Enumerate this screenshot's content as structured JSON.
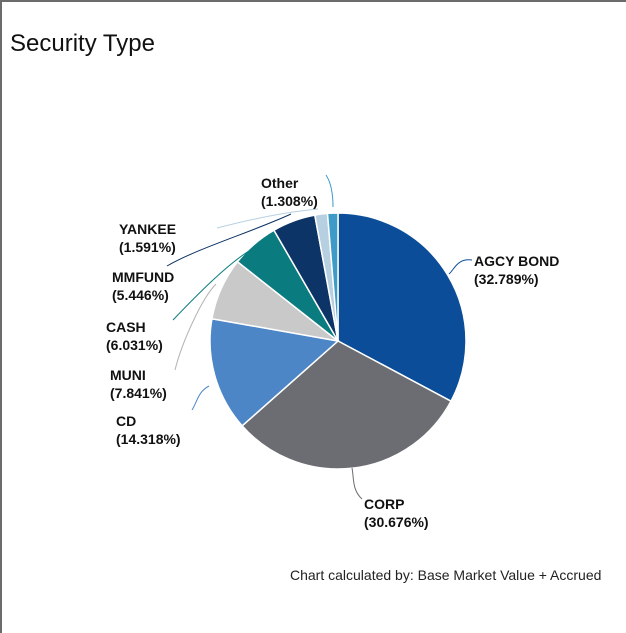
{
  "panel": {
    "title": "Security Type",
    "footer": "Chart calculated by: Base Market Value + Accrued"
  },
  "chart_data": {
    "type": "pie",
    "title": "Security Type",
    "slices": [
      {
        "name": "AGCY BOND",
        "pct_label": "(32.789%)",
        "value": 32.789,
        "color": "#0b4d99"
      },
      {
        "name": "CORP",
        "pct_label": "(30.676%)",
        "value": 30.676,
        "color": "#6b6d72"
      },
      {
        "name": "CD",
        "pct_label": "(14.318%)",
        "value": 14.318,
        "color": "#4d86c6"
      },
      {
        "name": "MUNI",
        "pct_label": "(7.841%)",
        "value": 7.841,
        "color": "#c9c9c9"
      },
      {
        "name": "CASH",
        "pct_label": "(6.031%)",
        "value": 6.031,
        "color": "#0a7c80"
      },
      {
        "name": "MMFUND",
        "pct_label": "(5.446%)",
        "value": 5.446,
        "color": "#0d3466"
      },
      {
        "name": "YANKEE",
        "pct_label": "(1.591%)",
        "value": 1.591,
        "color": "#b6d0e2"
      },
      {
        "name": "Other",
        "pct_label": "(1.308%)",
        "value": 1.308,
        "color": "#3e9ac6"
      }
    ]
  }
}
